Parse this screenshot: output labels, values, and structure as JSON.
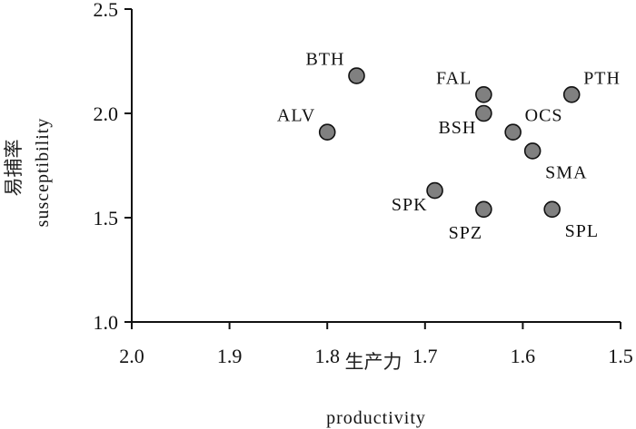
{
  "chart_data": {
    "type": "scatter",
    "title": "",
    "xlabel": "生产力",
    "xlabel_en": "productivity",
    "ylabel": "易捕率",
    "ylabel_en": "susceptibility",
    "xlim": [
      2.0,
      1.5
    ],
    "ylim": [
      1.0,
      2.5
    ],
    "x_reversed": true,
    "xticks": [
      "2.0",
      "1.9",
      "1.8",
      "1.7",
      "1.6",
      "1.5"
    ],
    "yticks": [
      "1.0",
      "1.5",
      "2.0",
      "2.5"
    ],
    "grid": false,
    "marker_color": "#808080",
    "points": [
      {
        "label": "BTH",
        "x": 1.77,
        "y": 2.18,
        "label_pos": "upper-left"
      },
      {
        "label": "FAL",
        "x": 1.64,
        "y": 2.09,
        "label_pos": "upper-left"
      },
      {
        "label": "PTH",
        "x": 1.55,
        "y": 2.09,
        "label_pos": "upper-right"
      },
      {
        "label": "BSH",
        "x": 1.64,
        "y": 2.0,
        "label_pos": "lower-left"
      },
      {
        "label": "ALV",
        "x": 1.8,
        "y": 1.91,
        "label_pos": "upper-left"
      },
      {
        "label": "OCS",
        "x": 1.61,
        "y": 1.91,
        "label_pos": "upper-right"
      },
      {
        "label": "SMA",
        "x": 1.59,
        "y": 1.82,
        "label_pos": "lower-right"
      },
      {
        "label": "SPK",
        "x": 1.69,
        "y": 1.63,
        "label_pos": "lower-left"
      },
      {
        "label": "SPZ",
        "x": 1.64,
        "y": 1.54,
        "label_pos": "below"
      },
      {
        "label": "SPL",
        "x": 1.57,
        "y": 1.54,
        "label_pos": "lower-right"
      }
    ]
  }
}
